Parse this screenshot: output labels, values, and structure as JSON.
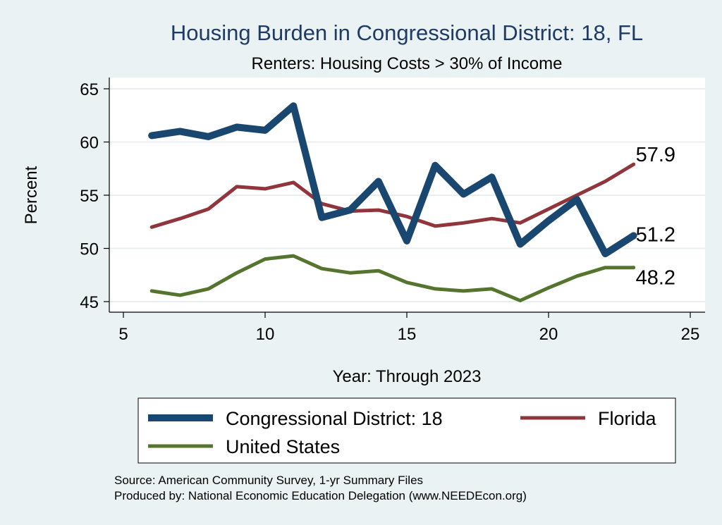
{
  "chart_data": {
    "type": "line",
    "title": "Housing Burden in Congressional District:  18, FL",
    "subtitle": "Renters: Housing Costs > 30% of Income",
    "xlabel": "Year: Through 2023",
    "ylabel": "Percent",
    "xlim": [
      5,
      25
    ],
    "ylim": [
      45,
      65
    ],
    "xticks": [
      5,
      10,
      15,
      20,
      25
    ],
    "yticks": [
      45,
      50,
      55,
      60,
      65
    ],
    "grid": true,
    "legend_position": "bottom",
    "series": [
      {
        "name": "Congressional District:  18",
        "color": "#1a476f",
        "x": [
          6,
          7,
          8,
          9,
          10,
          11,
          12,
          13,
          14,
          15,
          16,
          17,
          18,
          19,
          20,
          21,
          22,
          23
        ],
        "values": [
          60.6,
          61.0,
          60.5,
          61.4,
          61.1,
          63.4,
          52.9,
          53.6,
          56.3,
          50.7,
          57.8,
          55.1,
          56.7,
          50.4,
          52.6,
          54.6,
          49.5,
          51.2
        ],
        "end_label": "51.2"
      },
      {
        "name": "Florida",
        "color": "#90353b",
        "x": [
          6,
          7,
          8,
          9,
          10,
          11,
          12,
          13,
          14,
          15,
          16,
          17,
          18,
          19,
          20,
          21,
          22,
          23
        ],
        "values": [
          52.0,
          52.8,
          53.7,
          55.8,
          55.6,
          56.2,
          54.2,
          53.5,
          53.6,
          53.0,
          52.1,
          52.4,
          52.8,
          52.4,
          53.7,
          55.0,
          56.3,
          57.9
        ],
        "end_label": "57.9"
      },
      {
        "name": "United States",
        "color": "#55752f",
        "x": [
          6,
          7,
          8,
          9,
          10,
          11,
          12,
          13,
          14,
          15,
          16,
          17,
          18,
          19,
          20,
          21,
          22,
          23
        ],
        "values": [
          46.0,
          45.6,
          46.2,
          47.7,
          49.0,
          49.3,
          48.1,
          47.7,
          47.9,
          46.8,
          46.2,
          46.0,
          46.2,
          45.1,
          46.3,
          47.4,
          48.2,
          48.2
        ],
        "end_label": "48.2"
      }
    ]
  },
  "source_line1": "Source: American Community Survey, 1-yr Summary Files",
  "source_line2": "Produced by: National Economic Education Delegation (www.NEEDEcon.org)"
}
